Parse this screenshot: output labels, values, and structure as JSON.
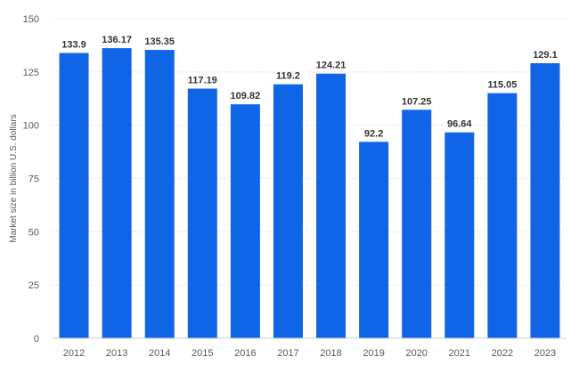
{
  "chart_data": {
    "type": "bar",
    "title": "",
    "xlabel": "",
    "ylabel": "Market size in billion U.S. dollars",
    "categories": [
      "2012",
      "2013",
      "2014",
      "2015",
      "2016",
      "2017",
      "2018",
      "2019",
      "2020",
      "2021",
      "2022",
      "2023"
    ],
    "values": [
      133.9,
      136.17,
      135.35,
      117.19,
      109.82,
      119.2,
      124.21,
      92.2,
      107.25,
      96.64,
      115.05,
      129.1
    ],
    "value_labels": [
      "133.9",
      "136.17",
      "135.35",
      "117.19",
      "109.82",
      "119.2",
      "124.21",
      "92.2",
      "107.25",
      "96.64",
      "115.05",
      "129.1"
    ],
    "ylim": [
      0,
      150
    ],
    "yticks": [
      0,
      25,
      50,
      75,
      100,
      125,
      150
    ],
    "ytick_labels": [
      "0",
      "25",
      "50",
      "75",
      "100",
      "125",
      "150"
    ],
    "grid": true,
    "legend": "none",
    "bar_color": "#0f65e6"
  }
}
